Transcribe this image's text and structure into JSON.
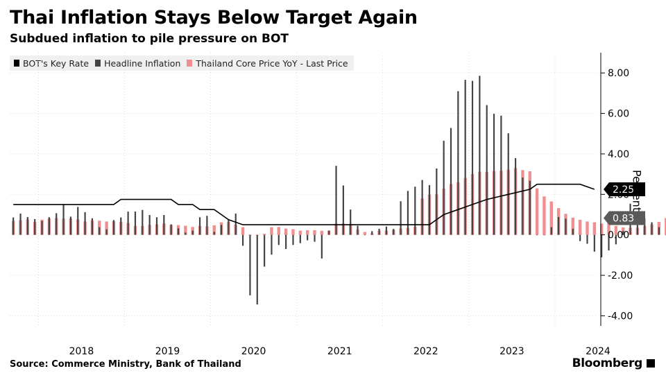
{
  "header": {
    "title": "Thai Inflation Stays Below Target Again",
    "subtitle": "Subdued inflation to pile pressure on BOT"
  },
  "footer": {
    "source": "Source: Commerce Ministry, Bank of Thailand",
    "brand": "Bloomberg"
  },
  "chart_data": {
    "type": "bar",
    "title": "Thai Inflation Stays Below Target Again",
    "subtitle": "Subdued inflation to pile pressure on BOT",
    "ylabel": "Percent",
    "ylim": [
      -4.5,
      9
    ],
    "yticks": [
      8.0,
      6.0,
      4.0,
      2.0,
      0.0,
      -2.0,
      -4.0
    ],
    "ytick_labels": [
      "8.00",
      "6.00",
      "4.00",
      "2.00",
      "0.00",
      "-2.00",
      "-4.00"
    ],
    "x_start": "2017-09",
    "x_end": "2024-06",
    "xtick_labels": [
      "2018",
      "2019",
      "2020",
      "2021",
      "2022",
      "2023",
      "2024"
    ],
    "grid": true,
    "legend_position": "top-left",
    "colors": {
      "key_rate": "#000000",
      "headline": "#444444",
      "core": "#f08f8f",
      "grid": "#dcdcdc"
    },
    "last_value_labels": [
      {
        "text": "2.25",
        "series": "BOT's Key Rate",
        "bg": "#000000",
        "fg": "#ffffff"
      },
      {
        "text": "0.83",
        "series": "Thailand Core Price YoY - Last Price",
        "bg": "#5a5a5a",
        "fg": "#ffffff"
      }
    ],
    "series": [
      {
        "name": "BOT's Key Rate",
        "type": "line",
        "points": [
          [
            "2017-10",
            1.5
          ],
          [
            "2018-11",
            1.5
          ],
          [
            "2018-12",
            1.75
          ],
          [
            "2019-07",
            1.75
          ],
          [
            "2019-08",
            1.5
          ],
          [
            "2019-10",
            1.5
          ],
          [
            "2019-11",
            1.25
          ],
          [
            "2020-01",
            1.25
          ],
          [
            "2020-02",
            1.0
          ],
          [
            "2020-03",
            0.75
          ],
          [
            "2020-05",
            0.5
          ],
          [
            "2022-07",
            0.5
          ],
          [
            "2022-08",
            0.75
          ],
          [
            "2022-09",
            1.0
          ],
          [
            "2022-11",
            1.25
          ],
          [
            "2023-01",
            1.5
          ],
          [
            "2023-03",
            1.75
          ],
          [
            "2023-06",
            2.0
          ],
          [
            "2023-09",
            2.25
          ],
          [
            "2023-10",
            2.5
          ],
          [
            "2024-04",
            2.5
          ],
          [
            "2024-06",
            2.25
          ]
        ]
      },
      {
        "name": "Headline Inflation",
        "type": "bar",
        "values": [
          0.86,
          1.05,
          0.88,
          0.78,
          0.69,
          0.87,
          1.07,
          1.5,
          0.9,
          1.38,
          1.12,
          0.82,
          0.38,
          0.27,
          0.73,
          0.86,
          1.15,
          1.15,
          1.23,
          0.98,
          0.87,
          0.98,
          0.52,
          0.32,
          0.11,
          0.21,
          0.87,
          0.94,
          0.15,
          0.49,
          0.74,
          1.05,
          -0.54,
          -2.99,
          -3.44,
          -1.57,
          -0.98,
          -0.5,
          -0.7,
          -0.5,
          -0.41,
          -0.27,
          -0.34,
          -1.17,
          0.21,
          3.41,
          2.44,
          1.25,
          0.45,
          -0.02,
          0.18,
          0.3,
          0.41,
          0.29,
          1.66,
          2.17,
          2.38,
          2.71,
          2.46,
          3.28,
          4.65,
          5.28,
          7.1,
          7.66,
          7.61,
          7.86,
          6.41,
          5.98,
          5.89,
          5.02,
          3.79,
          2.83,
          2.67,
          0.0,
          0.0,
          0.38,
          0.88,
          0.8,
          0.3,
          -0.31,
          -0.44,
          -0.83,
          -1.11,
          -0.77,
          -0.47,
          0.19,
          1.54,
          0.62,
          0.83,
          0.62,
          0.38,
          0.0
        ]
      },
      {
        "name": "Thailand Core Price YoY - Last Price",
        "type": "bar",
        "values": [
          0.69,
          0.72,
          0.76,
          0.64,
          0.75,
          0.81,
          0.83,
          0.8,
          0.8,
          0.76,
          0.66,
          0.71,
          0.7,
          0.66,
          0.67,
          0.64,
          0.58,
          0.44,
          0.44,
          0.49,
          0.52,
          0.56,
          0.49,
          0.48,
          0.45,
          0.39,
          0.44,
          0.42,
          0.47,
          0.62,
          0.64,
          0.5,
          0.38,
          0.01,
          -0.01,
          0.05,
          0.38,
          0.39,
          0.31,
          0.28,
          0.21,
          0.23,
          0.23,
          0.2,
          0.21,
          0.55,
          0.56,
          0.54,
          0.26,
          0.14,
          0.07,
          0.2,
          0.21,
          0.25,
          0.32,
          0.34,
          0.4,
          1.8,
          1.99,
          2.0,
          2.28,
          2.51,
          2.6,
          2.81,
          3.0,
          3.12,
          3.11,
          3.15,
          3.17,
          3.22,
          3.3,
          3.2,
          3.14,
          2.3,
          1.9,
          1.65,
          1.32,
          1.04,
          0.85,
          0.74,
          0.66,
          0.62,
          0.56,
          0.58,
          0.44,
          0.37,
          0.35,
          0.35,
          0.44,
          0.52,
          0.64,
          0.83
        ]
      }
    ]
  }
}
